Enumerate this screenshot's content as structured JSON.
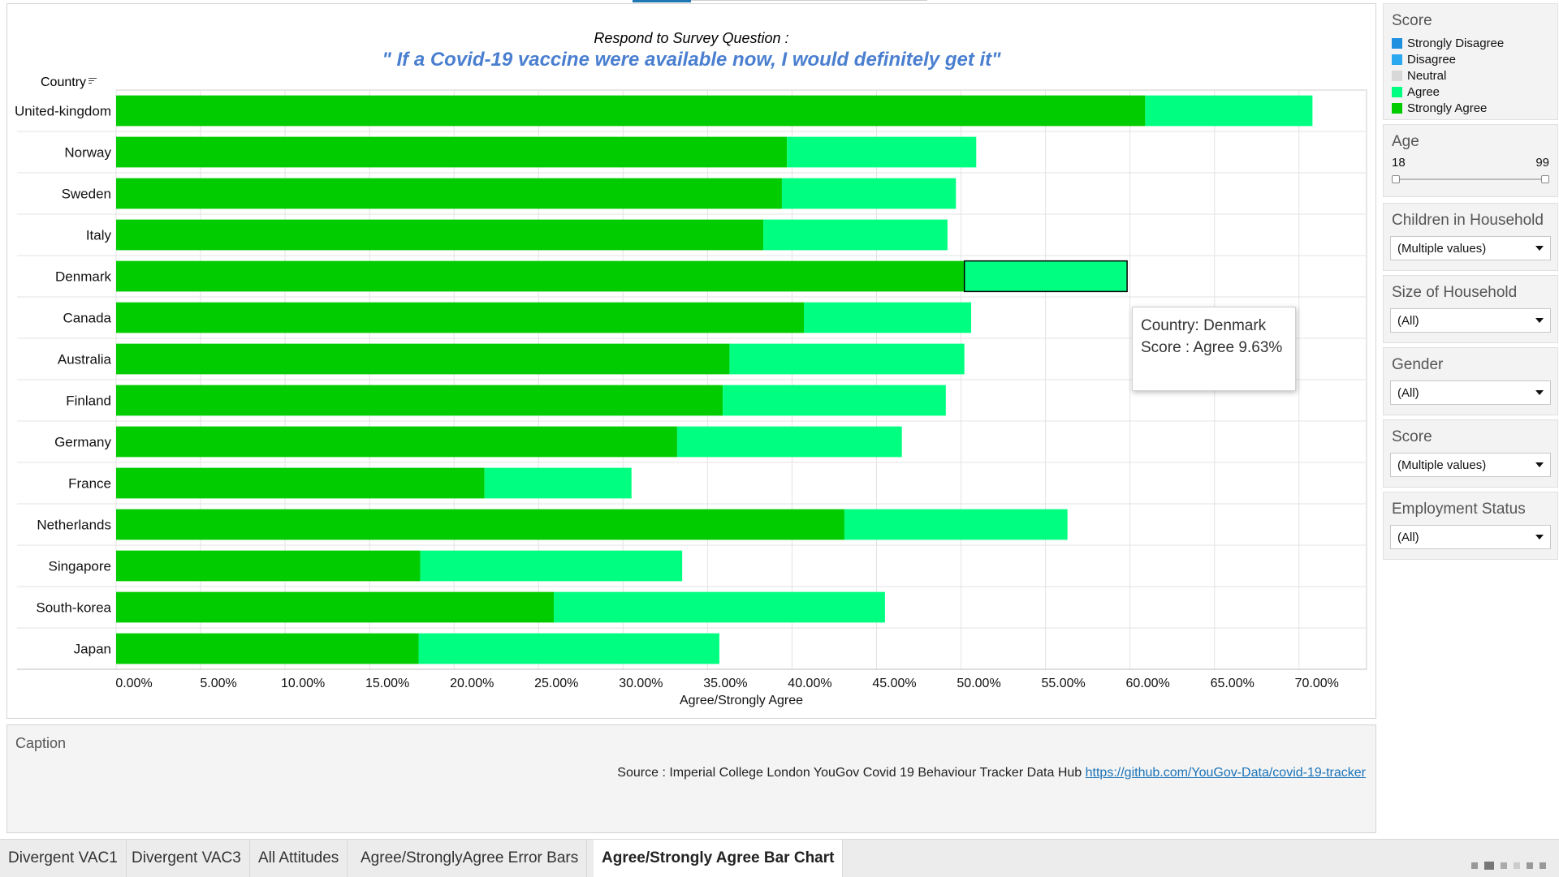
{
  "title": {
    "line1": "Respond to Survey Question :",
    "line2": "\" If a Covid-19 vaccine were available now, I would definitely get it\""
  },
  "country_header": "Country",
  "chart_data": {
    "type": "bar",
    "orientation": "horizontal",
    "stacked": true,
    "categories": [
      "United-kingdom",
      "Norway",
      "Sweden",
      "Italy",
      "Denmark",
      "Canada",
      "Australia",
      "Finland",
      "Germany",
      "France",
      "Netherlands",
      "Singapore",
      "South-korea",
      "Japan"
    ],
    "series": [
      {
        "name": "Strongly Agree",
        "color": "#00cc00",
        "values": [
          60.9,
          39.7,
          39.4,
          38.3,
          50.2,
          40.7,
          36.3,
          35.9,
          33.2,
          21.8,
          43.1,
          18.0,
          25.9,
          17.9
        ]
      },
      {
        "name": "Agree",
        "color": "#00ff80",
        "values": [
          9.9,
          11.2,
          10.3,
          10.9,
          9.63,
          9.9,
          13.9,
          13.2,
          13.3,
          8.7,
          13.2,
          15.5,
          19.6,
          17.8
        ]
      }
    ],
    "xlabel": "Agree/Strongly Agree",
    "xlim": [
      0,
      74
    ],
    "xticks": [
      "0.00%",
      "5.00%",
      "10.00%",
      "15.00%",
      "20.00%",
      "25.00%",
      "30.00%",
      "35.00%",
      "40.00%",
      "45.00%",
      "50.00%",
      "55.00%",
      "60.00%",
      "65.00%",
      "70.00%"
    ],
    "highlighted": {
      "category": "Denmark",
      "series": "Agree"
    }
  },
  "tooltip": {
    "line1": "Country: Denmark",
    "line2": "Score : Agree 9.63%"
  },
  "caption": {
    "title": "Caption",
    "source_text": "Source : Imperial College London YouGov Covid 19 Behaviour Tracker Data Hub ",
    "source_link": "https://github.com/YouGov-Data/covid-19-tracker"
  },
  "filters": {
    "score_legend": {
      "title": "Score",
      "items": [
        {
          "label": "Strongly Disagree",
          "color": "#1f8fe0"
        },
        {
          "label": "Disagree",
          "color": "#2aa8f0"
        },
        {
          "label": "Neutral",
          "color": "#d8d8d8"
        },
        {
          "label": "Agree",
          "color": "#00ff80"
        },
        {
          "label": "Strongly Agree",
          "color": "#00cc00"
        }
      ]
    },
    "age": {
      "title": "Age",
      "min": "18",
      "max": "99"
    },
    "children": {
      "title": "Children in Household",
      "value": "(Multiple values)"
    },
    "household_size": {
      "title": "Size of Household",
      "value": "(All)"
    },
    "gender": {
      "title": "Gender",
      "value": "(All)"
    },
    "score_filter": {
      "title": "Score",
      "value": "(Multiple values)"
    },
    "employment": {
      "title": "Employment Status",
      "value": "(All)"
    }
  },
  "tabs": [
    {
      "label": "Divergent VAC1"
    },
    {
      "label": "Divergent VAC3"
    },
    {
      "label": "All Attitudes"
    },
    {
      "label": "Agree/StronglyAgree Error Bars"
    },
    {
      "label": "Agree/Strongly Agree Bar Chart"
    }
  ]
}
